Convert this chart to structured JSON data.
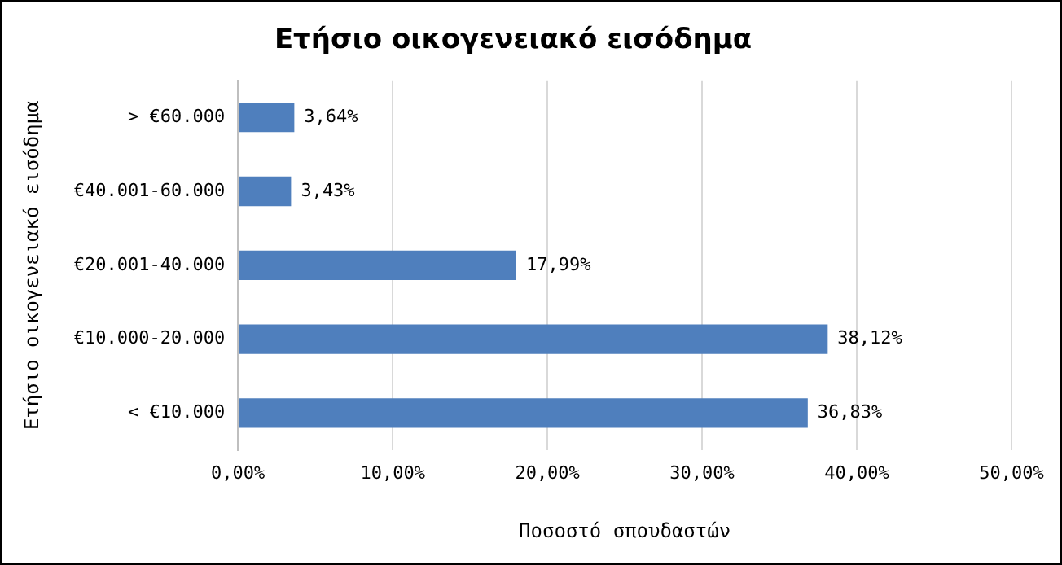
{
  "chart_data": {
    "type": "bar",
    "orientation": "horizontal",
    "title": "Ετήσιο οικογενειακό εισόδημα",
    "xlabel": "Ποσοστό σπουδαστών",
    "ylabel": "Ετήσιο οικογενειακό εισόδημα",
    "categories": [
      "> €60.000",
      "€40.001-60.000",
      "€20.001-40.000",
      "€10.000-20.000",
      "< €10.000"
    ],
    "values": [
      3.64,
      3.43,
      17.99,
      38.12,
      36.83
    ],
    "value_labels": [
      "3,64%",
      "3,43%",
      "17,99%",
      "38,12%",
      "36,83%"
    ],
    "color": "#4f7fbd",
    "xlim": [
      0,
      50
    ],
    "xticks": [
      {
        "value": 0,
        "label": "0,00%"
      },
      {
        "value": 10,
        "label": "10,00%"
      },
      {
        "value": 20,
        "label": "20,00%"
      },
      {
        "value": 30,
        "label": "30,00%"
      },
      {
        "value": 40,
        "label": "40,00%"
      },
      {
        "value": 50,
        "label": "50,00%"
      }
    ],
    "grid": "x",
    "legend": false
  }
}
